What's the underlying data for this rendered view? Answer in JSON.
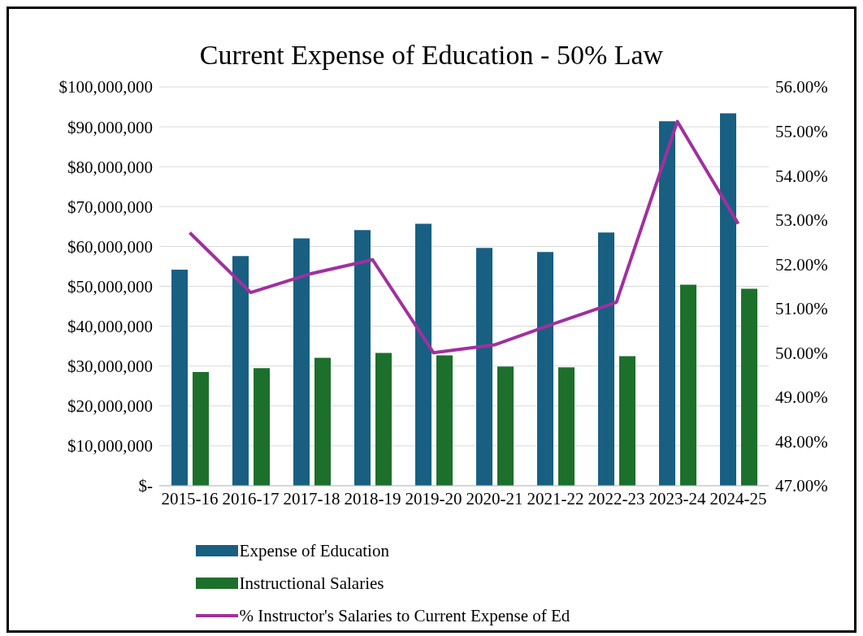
{
  "chart_data": {
    "type": "bar",
    "title": "Current Expense of Education - 50% Law",
    "categories": [
      "2015-16",
      "2016-17",
      "2017-18",
      "2018-19",
      "2019-20",
      "2020-21",
      "2021-22",
      "2022-23",
      "2023-24",
      "2024-25"
    ],
    "series": [
      {
        "name": "Expense of Education",
        "color": "#185f82",
        "values": [
          54200000,
          57600000,
          62000000,
          64100000,
          65700000,
          59600000,
          58600000,
          63500000,
          91400000,
          93400000
        ]
      },
      {
        "name": "Instructional Salaries",
        "color": "#1d6f2c",
        "values": [
          28500000,
          29500000,
          32100000,
          33300000,
          32700000,
          29900000,
          29700000,
          32500000,
          50400000,
          49400000
        ]
      },
      {
        "name": "% Instructor's Salaries to Current Expense of Ed",
        "type": "line",
        "axis": "y2",
        "color": "#a0309e",
        "values": [
          52.71,
          51.36,
          51.79,
          52.1,
          50.0,
          50.18,
          50.67,
          51.14,
          55.22,
          52.91
        ]
      }
    ],
    "ylim": [
      0,
      100000000
    ],
    "yticks": [
      {
        "value": 0,
        "label": "$-"
      },
      {
        "value": 10000000,
        "label": "$10,000,000"
      },
      {
        "value": 20000000,
        "label": "$20,000,000"
      },
      {
        "value": 30000000,
        "label": "$30,000,000"
      },
      {
        "value": 40000000,
        "label": "$40,000,000"
      },
      {
        "value": 50000000,
        "label": "$50,000,000"
      },
      {
        "value": 60000000,
        "label": "$60,000,000"
      },
      {
        "value": 70000000,
        "label": "$70,000,000"
      },
      {
        "value": 80000000,
        "label": "$80,000,000"
      },
      {
        "value": 90000000,
        "label": "$90,000,000"
      },
      {
        "value": 100000000,
        "label": "$100,000,000"
      }
    ],
    "y2lim": [
      47,
      56
    ],
    "y2ticks": [
      {
        "value": 47,
        "label": "47.00%"
      },
      {
        "value": 48,
        "label": "48.00%"
      },
      {
        "value": 49,
        "label": "49.00%"
      },
      {
        "value": 50,
        "label": "50.00%"
      },
      {
        "value": 51,
        "label": "51.00%"
      },
      {
        "value": 52,
        "label": "52.00%"
      },
      {
        "value": 53,
        "label": "53.00%"
      },
      {
        "value": 54,
        "label": "54.00%"
      },
      {
        "value": 55,
        "label": "55.00%"
      },
      {
        "value": 56,
        "label": "56.00%"
      }
    ],
    "grid": "y",
    "legend": "bottom",
    "marker": "none",
    "line_style": "solid"
  }
}
